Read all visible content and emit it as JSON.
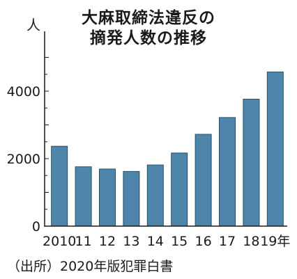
{
  "title_line1": "大麻取締法違反の",
  "title_line2": "摘発人数の推移",
  "y_unit": "人",
  "source": "（出所）2020年版犯罪白書",
  "colors": {
    "bar": "#4e86ab",
    "bar_edge": "#2b4f66",
    "axis": "#1a1a1a"
  },
  "chart_data": {
    "type": "bar",
    "title": "大麻取締法違反の摘発人数の推移",
    "ylabel": "人",
    "categories": [
      "2010",
      "11",
      "12",
      "13",
      "14",
      "15",
      "16",
      "17",
      "18",
      "19年"
    ],
    "values": [
      2367,
      1759,
      1692,
      1620,
      1813,
      2167,
      2722,
      3218,
      3762,
      4570
    ],
    "ylim": [
      0,
      5500
    ],
    "yticks": [
      "0",
      "2000",
      "4000"
    ],
    "grid": false
  }
}
